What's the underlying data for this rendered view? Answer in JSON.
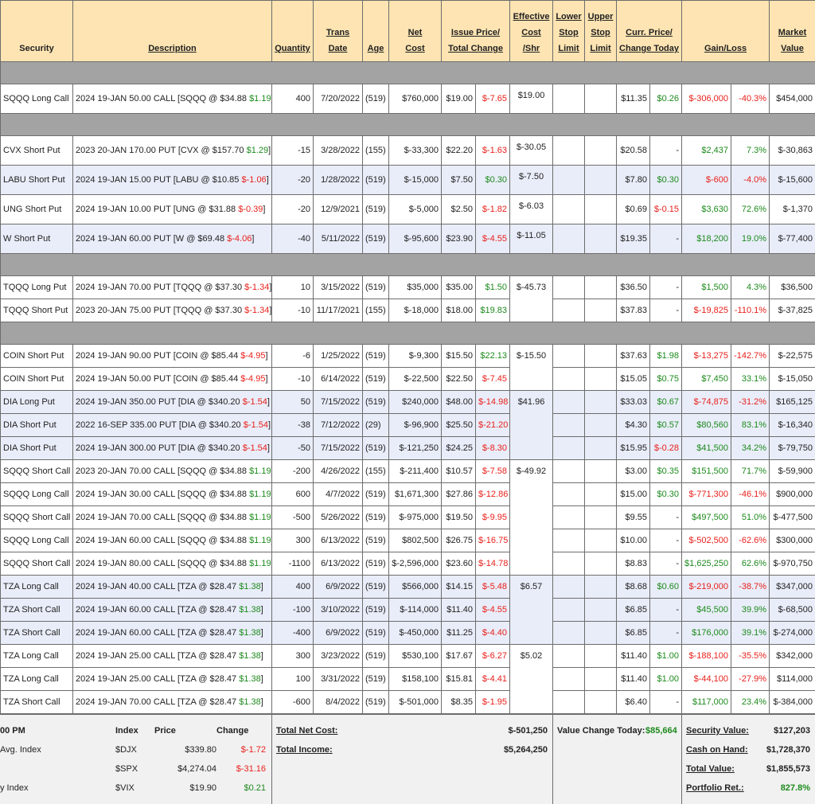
{
  "header": [
    [
      "Security"
    ],
    [
      "Description"
    ],
    [
      "Quantity"
    ],
    [
      "Trans",
      "Date"
    ],
    [
      "Age"
    ],
    [
      "Net",
      "Cost"
    ],
    [
      "Issue Price/",
      "Total Change"
    ],
    [
      "Effective",
      "Cost",
      "/Shr"
    ],
    [
      "Lower",
      "Stop",
      "Limit"
    ],
    [
      "Upper",
      "Stop",
      "Limit"
    ],
    [
      "Curr. Price/",
      "Change Today"
    ],
    [
      "Gain/Loss"
    ],
    [
      "Market",
      "Value"
    ]
  ],
  "sections": [
    {
      "rows": [
        {
          "shaded": false,
          "cells": [
            "SQQQ Long Call",
            "2024 19-JAN 50.00 CALL [SQQQ @ $34.88 $1.19]",
            "400",
            "7/20/2022",
            "(519)",
            "$760,000",
            "$19.00",
            "$-7.65",
            "$19.00",
            "$11.35",
            "$0.26",
            "$-306,000",
            "-40.3%",
            "$454,000"
          ]
        }
      ]
    },
    {
      "rows": [
        {
          "shaded": false,
          "cells": [
            "CVX Short Put",
            "2023 20-JAN 170.00 PUT [CVX @ $157.70 $1.29]",
            "-15",
            "3/28/2022",
            "(155)",
            "$-33,300",
            "$22.20",
            "$-1.63",
            "$-30.05",
            "$20.58",
            "-",
            "$2,437",
            "7.3%",
            "$-30,863"
          ]
        },
        {
          "shaded": true,
          "cells": [
            "LABU Short Put",
            "2024 19-JAN 15.00 PUT [LABU @ $10.85 $-1.06]",
            "-20",
            "1/28/2022",
            "(519)",
            "$-15,000",
            "$7.50",
            "$0.30",
            "$-7.50",
            "$7.80",
            "$0.30",
            "$-600",
            "-4.0%",
            "$-15,600"
          ]
        },
        {
          "shaded": false,
          "cells": [
            "UNG Short Put",
            "2024 19-JAN 10.00 PUT [UNG @ $31.88 $-0.39]",
            "-20",
            "12/9/2021",
            "(519)",
            "$-5,000",
            "$2.50",
            "$-1.82",
            "$-6.03",
            "$0.69",
            "$-0.15",
            "$3,630",
            "72.6%",
            "$-1,370"
          ]
        },
        {
          "shaded": true,
          "cells": [
            "W Short Put",
            "2024 19-JAN 60.00 PUT [W @ $69.48 $-4.06]",
            "-40",
            "5/11/2022",
            "(519)",
            "$-95,600",
            "$23.90",
            "$-4.55",
            "$-11.05",
            "$19.35",
            "-",
            "$18,200",
            "19.0%",
            "$-77,400"
          ]
        }
      ]
    },
    {
      "rows": [
        {
          "shaded": false,
          "cells": [
            "TQQQ Long Put",
            "2024 19-JAN 70.00 PUT [TQQQ @ $37.30 $-1.34]",
            "10",
            "3/15/2022",
            "(519)",
            "$35,000",
            "$35.00",
            "$1.50",
            "$-45.73",
            "$36.50",
            "-",
            "$1,500",
            "4.3%",
            "$36,500"
          ]
        },
        {
          "shaded": false,
          "cells": [
            "TQQQ Short Put",
            "2023 20-JAN 75.00 PUT [TQQQ @ $37.30 $-1.34]",
            "-10",
            "11/17/2021",
            "(155)",
            "$-18,000",
            "$18.00",
            "$19.83",
            null,
            "$37.83",
            "-",
            "$-19,825",
            "-110.1%",
            "$-37,825"
          ]
        }
      ]
    },
    {
      "rows": [
        {
          "shaded": false,
          "cells": [
            "COIN Short Put",
            "2024 19-JAN 90.00 PUT [COIN @ $85.44 $-4.95]",
            "-6",
            "1/25/2022",
            "(519)",
            "$-9,300",
            "$15.50",
            "$22.13",
            "$-15.50",
            "$37.63",
            "$1.98",
            "$-13,275",
            "-142.7%",
            "$-22,575"
          ]
        },
        {
          "shaded": false,
          "cells": [
            "COIN Short Put",
            "2024 19-JAN 50.00 PUT [COIN @ $85.44 $-4.95]",
            "-10",
            "6/14/2022",
            "(519)",
            "$-22,500",
            "$22.50",
            "$-7.45",
            null,
            "$15.05",
            "$0.75",
            "$7,450",
            "33.1%",
            "$-15,050"
          ]
        },
        {
          "shaded": true,
          "cells": [
            "DIA Long Put",
            "2024 19-JAN 350.00 PUT [DIA @ $340.20 $-1.54]",
            "50",
            "7/15/2022",
            "(519)",
            "$240,000",
            "$48.00",
            "$-14.98",
            "$41.96",
            "$33.03",
            "$0.67",
            "$-74,875",
            "-31.2%",
            "$165,125"
          ]
        },
        {
          "shaded": true,
          "cells": [
            "DIA Short Put",
            "2022 16-SEP 335.00 PUT [DIA @ $340.20 $-1.54]",
            "-38",
            "7/12/2022",
            "(29)",
            "$-96,900",
            "$25.50",
            "$-21.20",
            null,
            "$4.30",
            "$0.57",
            "$80,560",
            "83.1%",
            "$-16,340"
          ]
        },
        {
          "shaded": true,
          "cells": [
            "DIA Short Put",
            "2024 19-JAN 300.00 PUT [DIA @ $340.20 $-1.54]",
            "-50",
            "7/15/2022",
            "(519)",
            "$-121,250",
            "$24.25",
            "$-8.30",
            null,
            "$15.95",
            "$-0.28",
            "$41,500",
            "34.2%",
            "$-79,750"
          ]
        },
        {
          "shaded": false,
          "cells": [
            "SQQQ Short Call",
            "2023 20-JAN 70.00 CALL [SQQQ @ $34.88 $1.19]",
            "-200",
            "4/26/2022",
            "(155)",
            "$-211,400",
            "$10.57",
            "$-7.58",
            "$-49.92",
            "$3.00",
            "$0.35",
            "$151,500",
            "71.7%",
            "$-59,900"
          ]
        },
        {
          "shaded": false,
          "cells": [
            "SQQQ Long Call",
            "2024 19-JAN 30.00 CALL [SQQQ @ $34.88 $1.19]",
            "600",
            "4/7/2022",
            "(519)",
            "$1,671,300",
            "$27.86",
            "$-12.86",
            null,
            "$15.00",
            "$0.30",
            "$-771,300",
            "-46.1%",
            "$900,000"
          ]
        },
        {
          "shaded": false,
          "cells": [
            "SQQQ Short Call",
            "2024 19-JAN 70.00 CALL [SQQQ @ $34.88 $1.19]",
            "-500",
            "5/26/2022",
            "(519)",
            "$-975,000",
            "$19.50",
            "$-9.95",
            null,
            "$9.55",
            "-",
            "$497,500",
            "51.0%",
            "$-477,500"
          ]
        },
        {
          "shaded": false,
          "cells": [
            "SQQQ Long Call",
            "2024 19-JAN 60.00 CALL [SQQQ @ $34.88 $1.19]",
            "300",
            "6/13/2022",
            "(519)",
            "$802,500",
            "$26.75",
            "$-16.75",
            null,
            "$10.00",
            "-",
            "$-502,500",
            "-62.6%",
            "$300,000"
          ]
        },
        {
          "shaded": false,
          "cells": [
            "SQQQ Short Call",
            "2024 19-JAN 80.00 CALL [SQQQ @ $34.88 $1.19]",
            "-1100",
            "6/13/2022",
            "(519)",
            "$-2,596,000",
            "$23.60",
            "$-14.78",
            null,
            "$8.83",
            "-",
            "$1,625,250",
            "62.6%",
            "$-970,750"
          ]
        },
        {
          "shaded": true,
          "cells": [
            "TZA Long Call",
            "2024 19-JAN 40.00 CALL [TZA @ $28.47 $1.38]",
            "400",
            "6/9/2022",
            "(519)",
            "$566,000",
            "$14.15",
            "$-5.48",
            "$6.57",
            "$8.68",
            "$0.60",
            "$-219,000",
            "-38.7%",
            "$347,000"
          ]
        },
        {
          "shaded": true,
          "cells": [
            "TZA Short Call",
            "2024 19-JAN 60.00 CALL [TZA @ $28.47 $1.38]",
            "-100",
            "3/10/2022",
            "(519)",
            "$-114,000",
            "$11.40",
            "$-4.55",
            null,
            "$6.85",
            "-",
            "$45,500",
            "39.9%",
            "$-68,500"
          ]
        },
        {
          "shaded": true,
          "cells": [
            "TZA Short Call",
            "2024 19-JAN 60.00 CALL [TZA @ $28.47 $1.38]",
            "-400",
            "6/9/2022",
            "(519)",
            "$-450,000",
            "$11.25",
            "$-4.40",
            null,
            "$6.85",
            "-",
            "$176,000",
            "39.1%",
            "$-274,000"
          ]
        },
        {
          "shaded": false,
          "cells": [
            "TZA Long Call",
            "2024 19-JAN 25.00 CALL [TZA @ $28.47 $1.38]",
            "300",
            "3/23/2022",
            "(519)",
            "$530,100",
            "$17.67",
            "$-6.27",
            "$5.02",
            "$11.40",
            "$1.00",
            "$-188,100",
            "-35.5%",
            "$342,000"
          ]
        },
        {
          "shaded": false,
          "cells": [
            "TZA Long Call",
            "2024 19-JAN 25.00 CALL [TZA @ $28.47 $1.38]",
            "100",
            "3/31/2022",
            "(519)",
            "$158,100",
            "$15.81",
            "$-4.41",
            null,
            "$11.40",
            "$1.00",
            "$-44,100",
            "-27.9%",
            "$114,000"
          ]
        },
        {
          "shaded": false,
          "cells": [
            "TZA Short Call",
            "2024 19-JAN 70.00 CALL [TZA @ $28.47 $1.38]",
            "-600",
            "8/4/2022",
            "(519)",
            "$-501,000",
            "$8.35",
            "$-1.95",
            null,
            "$6.40",
            "-",
            "$117,000",
            "23.4%",
            "$-384,000"
          ]
        }
      ]
    }
  ],
  "footer": {
    "time": "00 PM",
    "index_labels": [
      "Avg. Index",
      "y Index"
    ],
    "index_header": [
      "Index",
      "Price",
      "Change"
    ],
    "index_rows": [
      [
        "$DJX",
        "$339.80",
        "$-1.72"
      ],
      [
        "$SPX",
        "$4,274.04",
        "$-31.16"
      ],
      [
        "$VIX",
        "$19.90",
        "$0.21"
      ]
    ],
    "totals": [
      [
        "Total Net Cost:",
        "$-501,250"
      ],
      [
        "Total Income:",
        "$5,264,250"
      ]
    ],
    "value_change": [
      "Value Change Today:",
      "$85,664"
    ],
    "summary": [
      [
        "Security Value:",
        "$127,203"
      ],
      [
        "Cash on Hand:",
        "$1,728,370"
      ],
      [
        "Total Value:",
        "$1,855,573"
      ],
      [
        "Portfolio Ret.:",
        "827.8%"
      ]
    ]
  }
}
